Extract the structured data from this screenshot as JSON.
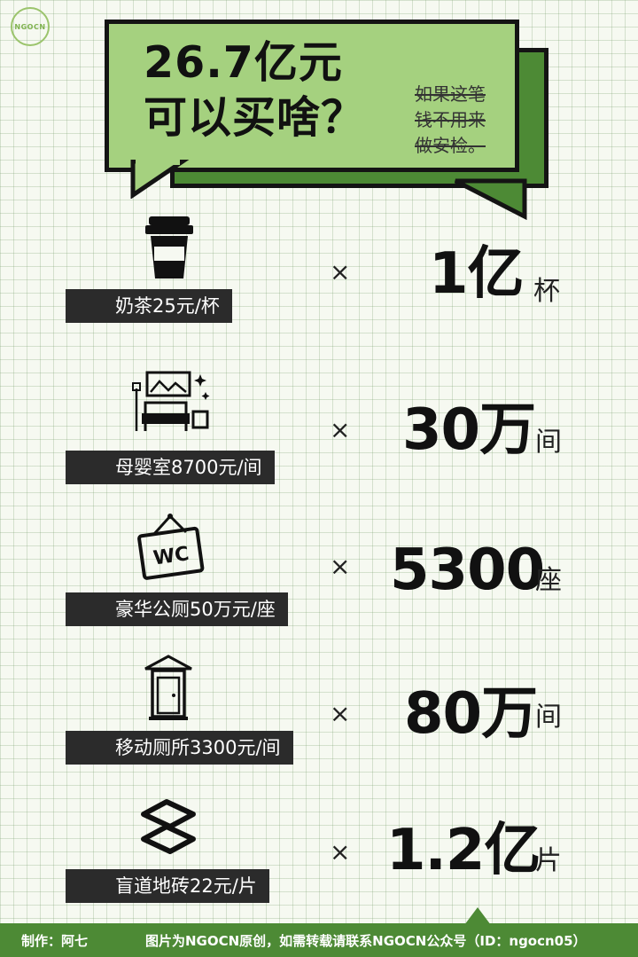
{
  "logo": {
    "text": "NGOCN"
  },
  "header": {
    "title_lines": [
      "26.7亿元",
      "可以买啥？"
    ],
    "strike_lines": [
      "如果这笔",
      "钱不用来",
      "做安检。"
    ]
  },
  "items": [
    {
      "icon": "milk-tea-cup-icon",
      "label": "奶茶25元/杯",
      "times": "×",
      "quantity": "1亿",
      "unit": "杯"
    },
    {
      "icon": "nursery-room-icon",
      "label": "母婴室8700元/间",
      "times": "×",
      "quantity": "30万",
      "unit": "间"
    },
    {
      "icon": "wc-sign-icon",
      "label": "豪华公厕50万元/座",
      "times": "×",
      "quantity": "5300",
      "unit": "座"
    },
    {
      "icon": "portable-toilet-icon",
      "label": "移动厕所3300元/间",
      "times": "×",
      "quantity": "80万",
      "unit": "间"
    },
    {
      "icon": "tactile-paving-tile-icon",
      "label": "盲道地砖22元/片",
      "times": "×",
      "quantity": "1.2亿",
      "unit": "片"
    }
  ],
  "footer": {
    "maker": "制作：阿七",
    "note": "图片为NGOCN原创，如需转载请联系NGOCN公众号（ID：ngocn05）"
  },
  "colors": {
    "accent_light": "#a5d17f",
    "accent_dark": "#4d8a35",
    "label_bg": "#2b2b2b"
  }
}
